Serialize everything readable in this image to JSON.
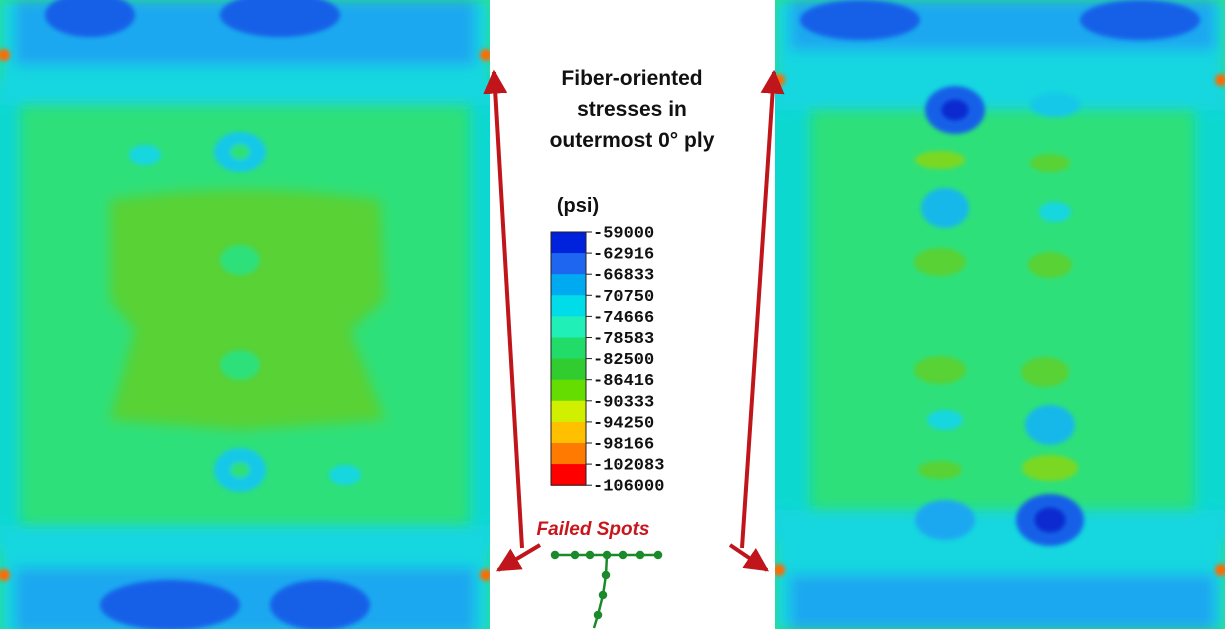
{
  "title_lines": [
    "Fiber-oriented",
    "stresses in",
    "outermost 0° ply"
  ],
  "legend": {
    "unit": "(psi)",
    "levels": [
      "-59000",
      "-62916",
      "-66833",
      "-70750",
      "-74666",
      "-78583",
      "-82500",
      "-86416",
      "-90333",
      "-94250",
      "-98166",
      "-102083",
      "-106000"
    ],
    "colors": [
      "#0022dd",
      "#1e66f0",
      "#00aaf0",
      "#00dde8",
      "#20f0b8",
      "#22dc6a",
      "#30cc30",
      "#66dd00",
      "#d0f000",
      "#ffc000",
      "#ff7a00",
      "#ff0000"
    ]
  },
  "annotation": "Failed Spots"
}
